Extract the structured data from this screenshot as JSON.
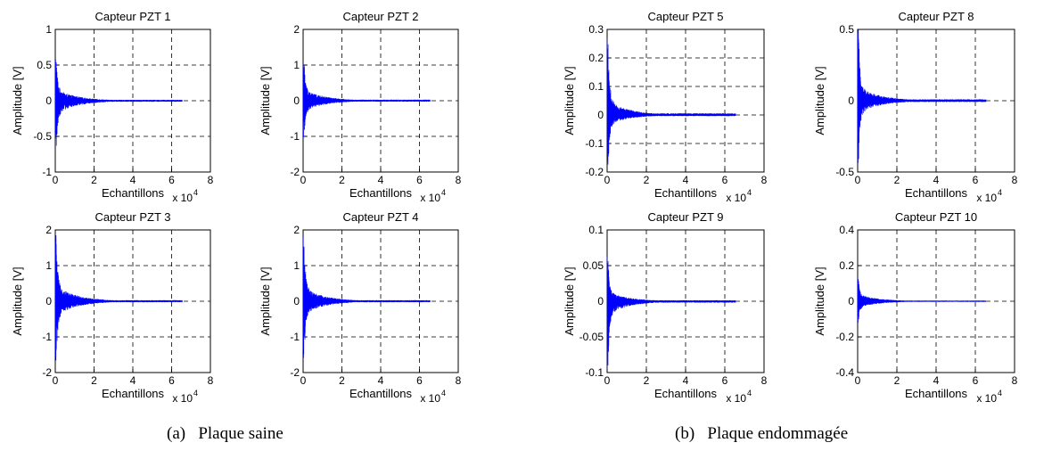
{
  "chart_data": [
    {
      "type": "line",
      "title": "Capteur PZT 1",
      "xlabel": "Echantillons",
      "ylabel": "Amplitude [V]",
      "x_multiplier": "x 10",
      "x_exponent": "4",
      "xlim": [
        0,
        8
      ],
      "ylim": [
        -1,
        1
      ],
      "xticks": [
        "0",
        "2",
        "4",
        "6",
        "8"
      ],
      "yticks": [
        "-1",
        "-0.5",
        "0",
        "0.5",
        "1"
      ],
      "grid": true,
      "series": [
        {
          "color": "#0000ff",
          "signal": {
            "peak_max": 0.65,
            "peak_min": -0.75,
            "decay_to": 0.15,
            "tail": 0.015,
            "end": 6.55
          }
        }
      ]
    },
    {
      "type": "line",
      "title": "Capteur PZT 2",
      "xlabel": "Echantillons",
      "ylabel": "Amplitude [V]",
      "x_multiplier": "x 10",
      "x_exponent": "4",
      "xlim": [
        0,
        8
      ],
      "ylim": [
        -2,
        2
      ],
      "xticks": [
        "0",
        "2",
        "4",
        "6",
        "8"
      ],
      "yticks": [
        "-2",
        "-1",
        "0",
        "1",
        "2"
      ],
      "grid": true,
      "series": [
        {
          "color": "#0000ff",
          "signal": {
            "peak_max": 1.2,
            "peak_min": -1.1,
            "decay_to": 0.25,
            "tail": 0.03,
            "end": 6.55
          }
        }
      ]
    },
    {
      "type": "line",
      "title": "Capteur PZT 3",
      "xlabel": "Echantillons",
      "ylabel": "Amplitude [V]",
      "x_multiplier": "x 10",
      "x_exponent": "4",
      "xlim": [
        0,
        8
      ],
      "ylim": [
        -2,
        2
      ],
      "xticks": [
        "0",
        "2",
        "4",
        "6",
        "8"
      ],
      "yticks": [
        "-2",
        "-1",
        "0",
        "1",
        "2"
      ],
      "grid": true,
      "series": [
        {
          "color": "#0000ff",
          "signal": {
            "peak_max": 1.9,
            "peak_min": -1.75,
            "decay_to": 0.35,
            "tail": 0.03,
            "end": 6.55
          }
        }
      ]
    },
    {
      "type": "line",
      "title": "Capteur PZT 4",
      "xlabel": "Echantillons",
      "ylabel": "Amplitude [V]",
      "x_multiplier": "x 10",
      "x_exponent": "4",
      "xlim": [
        0,
        8
      ],
      "ylim": [
        -2,
        2
      ],
      "xticks": [
        "0",
        "2",
        "4",
        "6",
        "8"
      ],
      "yticks": [
        "-2",
        "-1",
        "0",
        "1",
        "2"
      ],
      "grid": true,
      "series": [
        {
          "color": "#0000ff",
          "signal": {
            "peak_max": 1.8,
            "peak_min": -1.7,
            "decay_to": 0.3,
            "tail": 0.03,
            "end": 6.55
          }
        }
      ]
    },
    {
      "type": "line",
      "title": "Capteur PZT 5",
      "xlabel": "Echantillons",
      "ylabel": "Amplitude [V]",
      "x_multiplier": "x 10",
      "x_exponent": "4",
      "xlim": [
        0,
        8
      ],
      "ylim": [
        -0.2,
        0.3
      ],
      "xticks": [
        "0",
        "2",
        "4",
        "6",
        "8"
      ],
      "yticks": [
        "-0.2",
        "-0.1",
        "0",
        "0.1",
        "0.2",
        "0.3"
      ],
      "grid": true,
      "series": [
        {
          "color": "#0000ff",
          "signal": {
            "peak_max": 0.29,
            "peak_min": -0.2,
            "decay_to": 0.04,
            "tail": 0.006,
            "end": 6.55
          }
        }
      ]
    },
    {
      "type": "line",
      "title": "Capteur PZT 8",
      "xlabel": "Echantillons",
      "ylabel": "Amplitude [V]",
      "x_multiplier": "x 10",
      "x_exponent": "4",
      "xlim": [
        0,
        8
      ],
      "ylim": [
        -0.5,
        0.5
      ],
      "xticks": [
        "0",
        "2",
        "4",
        "6",
        "8"
      ],
      "yticks": [
        "-0.5",
        "0",
        "0.5"
      ],
      "grid": true,
      "series": [
        {
          "color": "#0000ff",
          "signal": {
            "peak_max": 0.5,
            "peak_min": -0.45,
            "decay_to": 0.08,
            "tail": 0.01,
            "end": 6.55
          }
        }
      ]
    },
    {
      "type": "line",
      "title": "Capteur PZT 9",
      "xlabel": "Echantillons",
      "ylabel": "Amplitude [V]",
      "x_multiplier": "x 10",
      "x_exponent": "4",
      "xlim": [
        0,
        8
      ],
      "ylim": [
        -0.1,
        0.1
      ],
      "xticks": [
        "0",
        "2",
        "4",
        "6",
        "8"
      ],
      "yticks": [
        "-0.1",
        "-0.05",
        "0",
        "0.05",
        "0.1"
      ],
      "grid": true,
      "series": [
        {
          "color": "#0000ff",
          "signal": {
            "peak_max": 0.065,
            "peak_min": -0.095,
            "decay_to": 0.015,
            "tail": 0.002,
            "end": 6.55
          }
        }
      ]
    },
    {
      "type": "line",
      "title": "Capteur PZT 10",
      "xlabel": "Echantillons",
      "ylabel": "Amplitude [V]",
      "x_multiplier": "x 10",
      "x_exponent": "4",
      "xlim": [
        0,
        8
      ],
      "ylim": [
        -0.4,
        0.4
      ],
      "xticks": [
        "0",
        "2",
        "4",
        "6",
        "8"
      ],
      "yticks": [
        "-0.4",
        "-0.2",
        "0",
        "0.2",
        "0.4"
      ],
      "grid": true,
      "series": [
        {
          "color": "#0000ff",
          "signal": {
            "peak_max": 0.13,
            "peak_min": -0.12,
            "decay_to": 0.03,
            "tail": 0.004,
            "end": 6.55
          }
        }
      ]
    }
  ],
  "captions": {
    "a": "(a)   Plaque saine",
    "b": "(b)   Plaque endommagée"
  }
}
